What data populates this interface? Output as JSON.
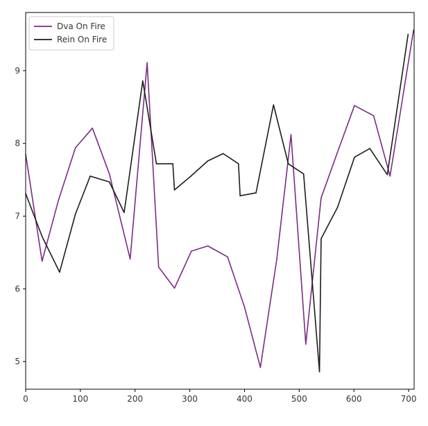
{
  "chart_data": {
    "type": "line",
    "title": "",
    "xlabel": "",
    "ylabel": "",
    "xlim": [
      0,
      710
    ],
    "ylim": [
      4.62,
      9.8
    ],
    "xticks": [
      0,
      100,
      200,
      300,
      400,
      500,
      600,
      700
    ],
    "yticks": [
      5,
      6,
      7,
      8,
      9
    ],
    "grid": false,
    "legend_position": "top-left",
    "series": [
      {
        "name": "Dva On Fire",
        "color": "#7b2a84",
        "x": [
          0,
          30,
          60,
          91,
          122,
          153,
          191,
          222,
          243,
          272,
          303,
          333,
          369,
          400,
          429,
          459,
          485,
          512,
          540,
          570,
          601,
          636,
          666,
          709
        ],
        "y": [
          7.85,
          6.38,
          7.22,
          7.94,
          8.21,
          7.58,
          6.41,
          9.11,
          6.3,
          6.01,
          6.52,
          6.59,
          6.44,
          5.75,
          4.92,
          6.41,
          8.12,
          5.24,
          7.25,
          7.88,
          8.52,
          8.38,
          7.55,
          9.56
        ]
      },
      {
        "name": "Rein On Fire",
        "color": "#1c1c1c",
        "x": [
          0,
          30,
          62,
          91,
          118,
          153,
          180,
          214,
          239,
          269,
          272,
          302,
          333,
          361,
          389,
          392,
          421,
          453,
          480,
          508,
          537,
          540,
          570,
          601,
          629,
          661,
          699
        ],
        "y": [
          7.31,
          6.72,
          6.23,
          7.03,
          7.55,
          7.47,
          7.05,
          8.86,
          7.72,
          7.72,
          7.36,
          7.55,
          7.76,
          7.86,
          7.72,
          7.28,
          7.32,
          8.53,
          7.72,
          7.58,
          4.86,
          6.69,
          7.12,
          7.81,
          7.93,
          7.57,
          9.5
        ]
      }
    ]
  }
}
